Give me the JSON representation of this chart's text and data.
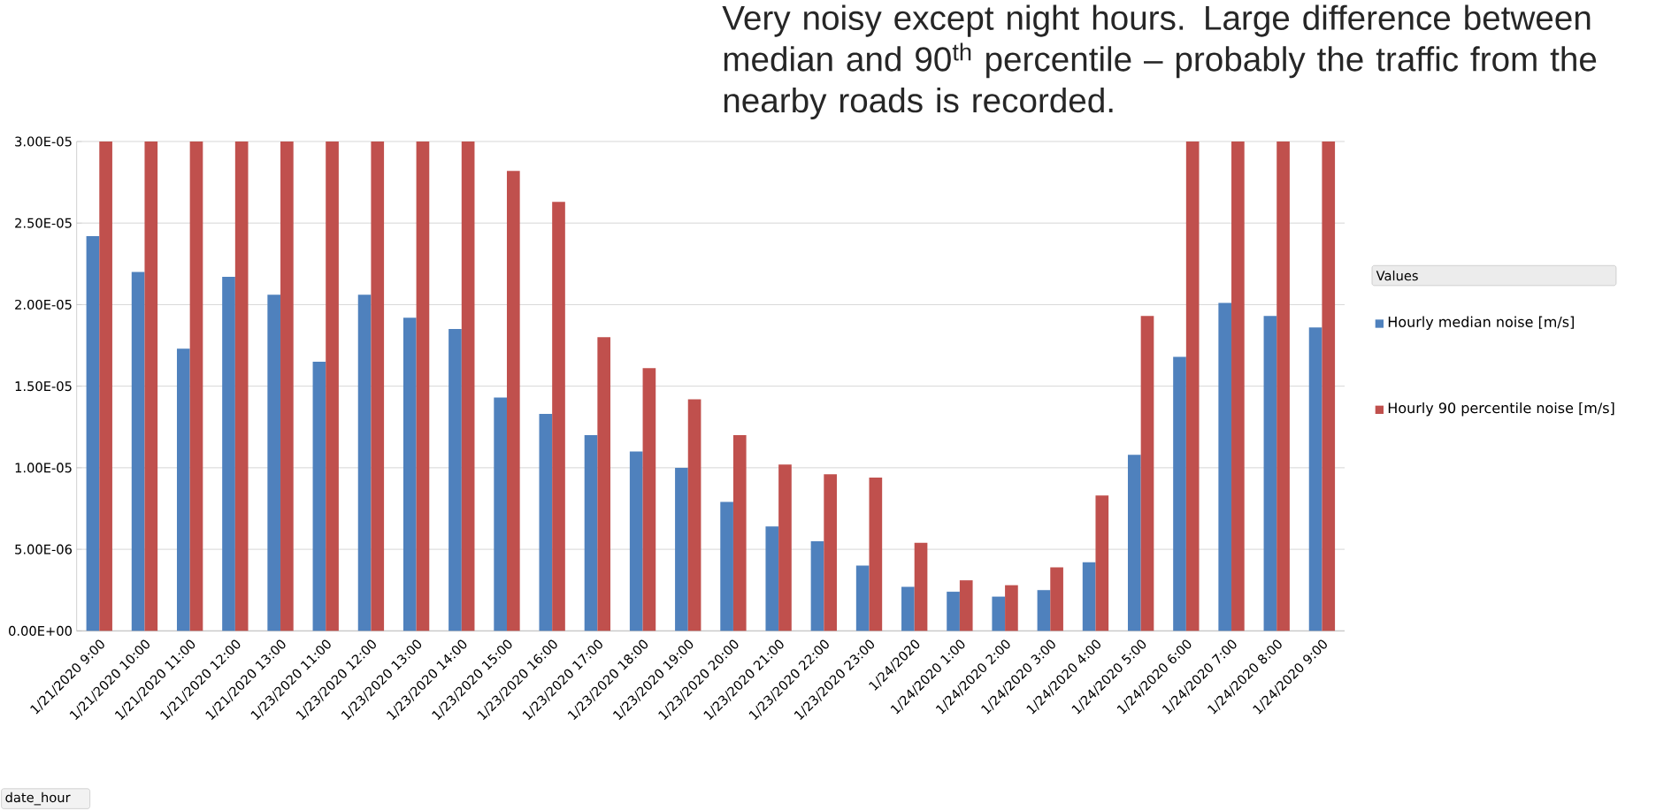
{
  "chart_data": {
    "type": "bar",
    "annotations": [
      "Very noisy except night hours. Large difference between median and 90$^{th}$ percentile – probably the traffic from the nearby roads is recorded.",
      "date_hour"
    ],
    "legend_title": "Values",
    "categories": [
      "1/21/2020 9:00",
      "1/21/2020 10:00",
      "1/21/2020 11:00",
      "1/21/2020 12:00",
      "1/21/2020 13:00",
      "1/23/2020 11:00",
      "1/23/2020 12:00",
      "1/23/2020 13:00",
      "1/23/2020 14:00",
      "1/23/2020 15:00",
      "1/23/2020 16:00",
      "1/23/2020 17:00",
      "1/23/2020 18:00",
      "1/23/2020 19:00",
      "1/23/2020 20:00",
      "1/23/2020 21:00",
      "1/23/2020 22:00",
      "1/23/2020 23:00",
      "1/24/2020",
      "1/24/2020 1:00",
      "1/24/2020 2:00",
      "1/24/2020 3:00",
      "1/24/2020 4:00",
      "1/24/2020 5:00",
      "1/24/2020 6:00",
      "1/24/2020 7:00",
      "1/24/2020 8:00",
      "1/24/2020 9:00"
    ],
    "series": [
      {
        "name": "Hourly median noise [m/s]",
        "color": "#4f81bd",
        "values": [
          2.42e-05,
          2.2e-05,
          1.73e-05,
          2.17e-05,
          2.06e-05,
          1.65e-05,
          2.06e-05,
          1.92e-05,
          1.85e-05,
          1.43e-05,
          1.33e-05,
          1.2e-05,
          1.1e-05,
          1e-05,
          7.9e-06,
          6.4e-06,
          5.5e-06,
          4e-06,
          2.7e-06,
          2.4e-06,
          2.1e-06,
          2.5e-06,
          4.2e-06,
          1.08e-05,
          1.68e-05,
          2.01e-05,
          1.93e-05,
          1.86e-05
        ]
      },
      {
        "name": "Hourly 90 percentile noise [m/s]",
        "color": "#c0504d",
        "values": [
          3e-05,
          3e-05,
          3e-05,
          3e-05,
          3e-05,
          3e-05,
          3e-05,
          3e-05,
          3e-05,
          2.82e-05,
          2.63e-05,
          1.8e-05,
          1.61e-05,
          1.42e-05,
          1.2e-05,
          1.02e-05,
          9.6e-06,
          9.4e-06,
          5.4e-06,
          3.1e-06,
          2.8e-06,
          3.9e-06,
          8.3e-06,
          1.93e-05,
          3e-05,
          3e-05,
          3e-05,
          3e-05
        ]
      }
    ],
    "ylim": [
      0,
      3e-05
    ],
    "yticks": [
      {
        "value": 0,
        "label": "0.00E+00"
      },
      {
        "value": 5e-06,
        "label": "5.00E-06"
      },
      {
        "value": 1e-05,
        "label": "1.00E-05"
      },
      {
        "value": 1.5e-05,
        "label": "1.50E-05"
      },
      {
        "value": 2e-05,
        "label": "2.00E-05"
      },
      {
        "value": 2.5e-05,
        "label": "2.50E-05"
      },
      {
        "value": 3e-05,
        "label": "3.00E-05"
      }
    ],
    "grid": "y",
    "legend": "right"
  }
}
